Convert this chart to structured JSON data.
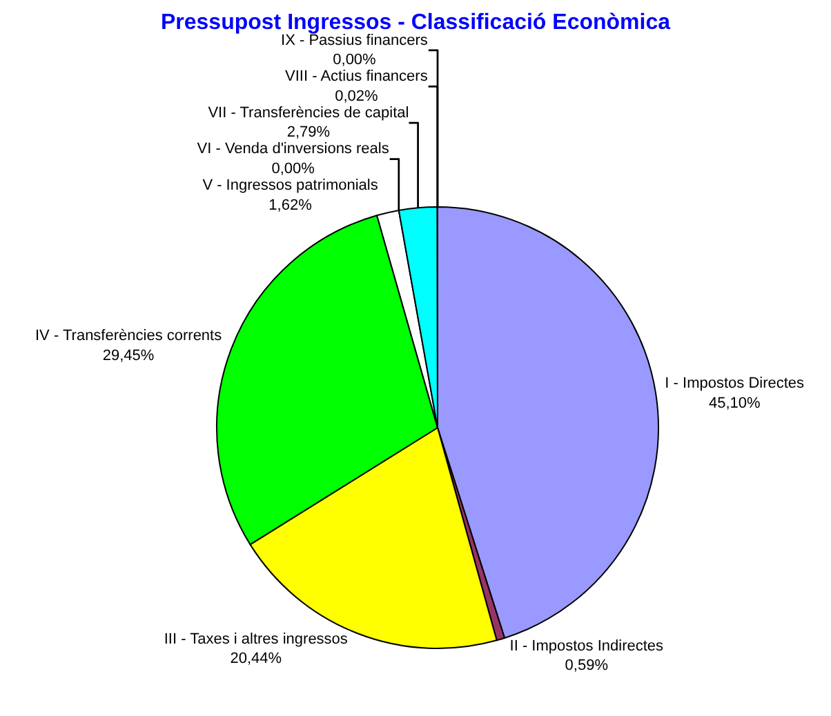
{
  "chart_data": {
    "type": "pie",
    "title": "Pressupost Ingressos - Classificació Econòmica",
    "categories": [
      "I - Impostos Directes",
      "II - Impostos Indirectes",
      "III - Taxes i altres ingressos",
      "IV - Transferències corrents",
      "V - Ingressos patrimonials",
      "VI - Venda d'inversions reals",
      "VII - Transferències de capital",
      "VIII - Actius financers",
      "IX - Passius financers"
    ],
    "values": [
      45.1,
      0.59,
      20.44,
      29.45,
      1.62,
      0.0,
      2.79,
      0.02,
      0.0
    ],
    "colors": [
      "#9999ff",
      "#993366",
      "#ffff00",
      "#00ff00",
      "#ffffff",
      "#ff0000",
      "#00ffff",
      "#0000ff",
      "#800080"
    ],
    "value_labels": [
      "45,10%",
      "0,59%",
      "20,44%",
      "29,45%",
      "1,62%",
      "0,00%",
      "2,79%",
      "0,02%",
      "0,00%"
    ],
    "legend": false
  }
}
